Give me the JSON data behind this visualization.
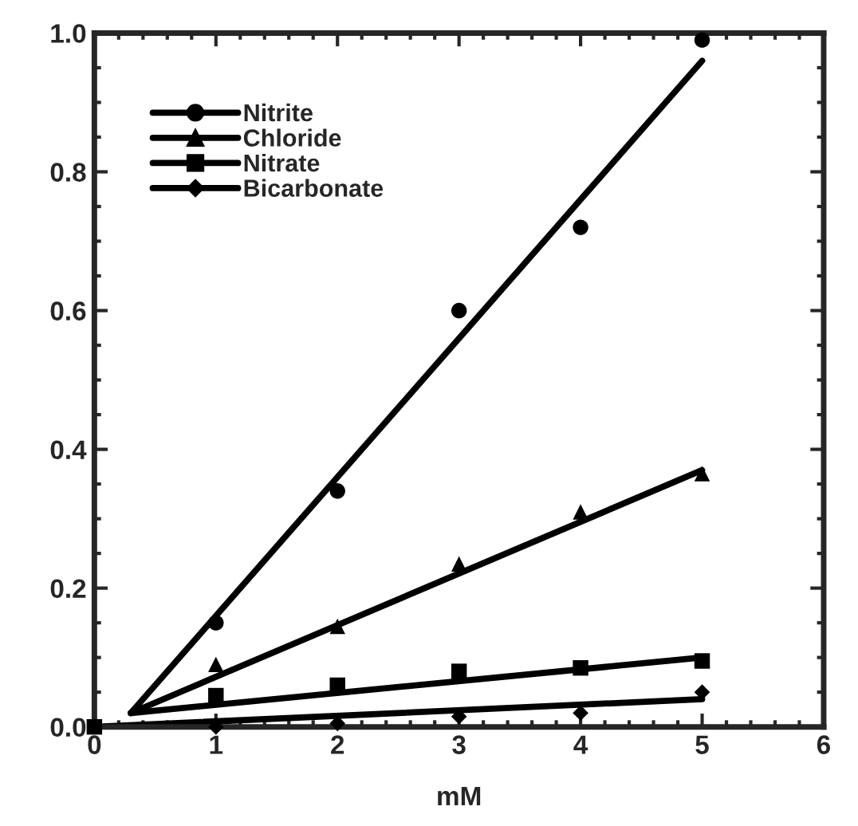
{
  "chart_data": {
    "type": "scatter",
    "xlabel": "mM",
    "xlim": [
      0,
      6
    ],
    "xticks": [
      0,
      1,
      2,
      3,
      4,
      5,
      6
    ],
    "ylim": [
      0,
      1.0
    ],
    "yticks": [
      {
        "value": 0,
        "label": "0.0"
      },
      {
        "value": 0.2,
        "label": "0.2"
      },
      {
        "value": 0.4,
        "label": "0.4"
      },
      {
        "value": 0.6,
        "label": "0.6"
      },
      {
        "value": 0.8,
        "label": "0.8"
      },
      {
        "value": 1.0,
        "label": "1.0"
      }
    ],
    "grid": false,
    "legend": "top left",
    "series": [
      {
        "name": "Nitrite",
        "marker": "circle",
        "color": "#000000",
        "x": [
          1,
          2,
          3,
          4,
          5
        ],
        "values": [
          0.15,
          0.34,
          0.6,
          0.72,
          0.99
        ]
      },
      {
        "name": "Chloride",
        "marker": "triangle",
        "color": "#000000",
        "x": [
          1,
          2,
          3,
          4,
          5
        ],
        "values": [
          0.09,
          0.145,
          0.235,
          0.31,
          0.365
        ]
      },
      {
        "name": "Nitrate",
        "marker": "square",
        "color": "#000000",
        "x": [
          0,
          1,
          2,
          3,
          4,
          5
        ],
        "values": [
          0,
          0.045,
          0.06,
          0.08,
          0.085,
          0.095
        ]
      },
      {
        "name": "Bicarbonate",
        "marker": "diamond",
        "color": "#000000",
        "x": [
          1,
          2,
          3,
          4,
          5
        ],
        "values": [
          0,
          0.005,
          0.015,
          0.02,
          0.05
        ]
      },
      {
        "type": "line",
        "color": "#000000",
        "line_style": "solid",
        "x": [
          0.3,
          5
        ],
        "values": [
          0.02,
          0.96
        ]
      },
      {
        "type": "line",
        "color": "#000000",
        "line_style": "solid",
        "x": [
          0.3,
          5
        ],
        "values": [
          0.02,
          0.37
        ]
      },
      {
        "type": "line",
        "color": "#000000",
        "line_style": "solid",
        "x": [
          0.3,
          5
        ],
        "values": [
          0.02,
          0.1
        ]
      },
      {
        "type": "line",
        "color": "#000000",
        "line_style": "solid",
        "x": [
          0,
          5
        ],
        "values": [
          0,
          0.04
        ]
      }
    ]
  }
}
